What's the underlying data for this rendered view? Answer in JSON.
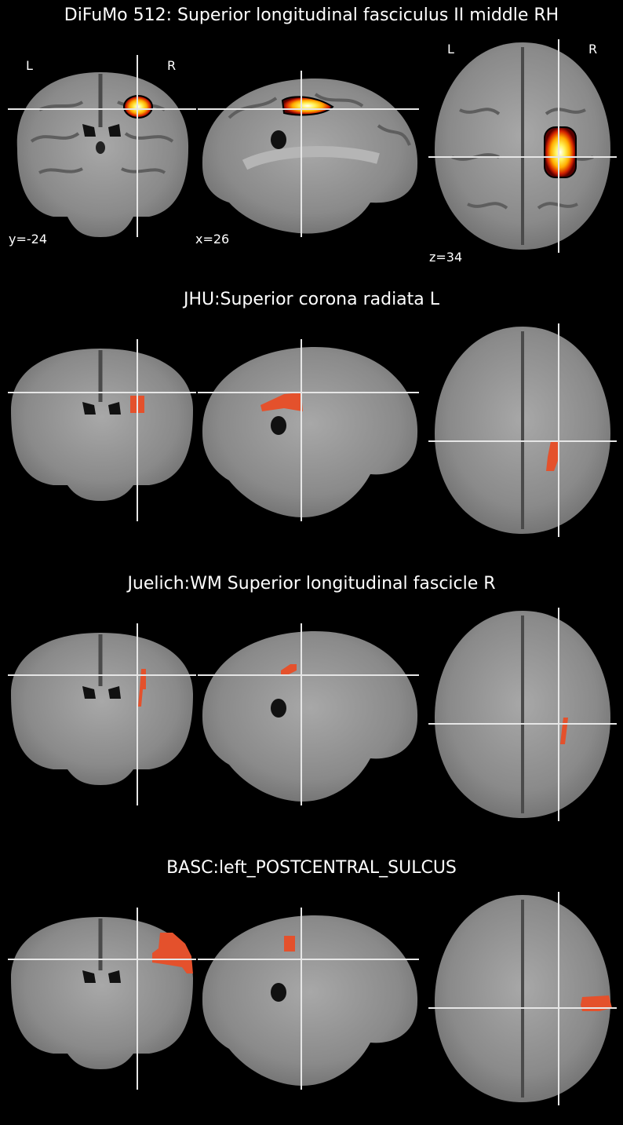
{
  "panels": [
    {
      "title": "DiFuMo 512: Superior longitudinal fasciculus II middle RH",
      "overlay": "heat",
      "orientation": {
        "left": "L",
        "right": "R"
      },
      "cuts": {
        "coronal": "y=-24",
        "sagittal": "x=26",
        "axial": "z=34"
      }
    },
    {
      "title": "JHU:Superior corona radiata L",
      "overlay": "mask"
    },
    {
      "title": "Juelich:WM Superior longitudinal fascicle R",
      "overlay": "mask"
    },
    {
      "title": "BASC:left_POSTCENTRAL_SULCUS",
      "overlay": "mask"
    }
  ],
  "colors": {
    "background": "#000000",
    "mask": "#e4512c",
    "crosshair": "#e6e6e6"
  },
  "icons": [
    "coronal-brain-slice",
    "sagittal-brain-slice",
    "axial-brain-slice"
  ]
}
